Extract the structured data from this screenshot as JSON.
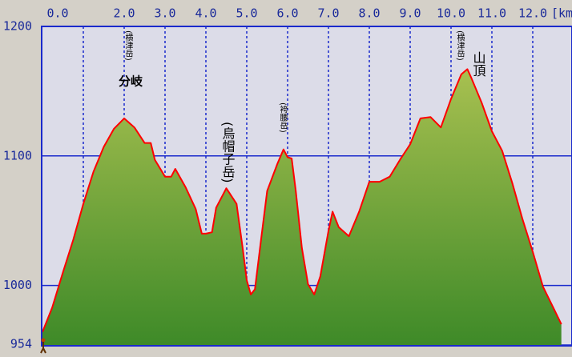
{
  "chart_data": {
    "type": "area-line",
    "x_label": "[km",
    "x": [
      0,
      0.24,
      0.5,
      0.75,
      1.0,
      1.25,
      1.5,
      1.75,
      2.0,
      2.25,
      2.5,
      2.65,
      2.75,
      3.0,
      3.15,
      3.25,
      3.5,
      3.75,
      3.9,
      4.0,
      4.15,
      4.25,
      4.5,
      4.75,
      4.9,
      5.0,
      5.1,
      5.2,
      5.35,
      5.5,
      5.75,
      5.9,
      6.0,
      6.1,
      6.2,
      6.35,
      6.5,
      6.65,
      6.8,
      7.0,
      7.1,
      7.25,
      7.5,
      7.75,
      8.0,
      8.25,
      8.5,
      8.75,
      9.0,
      9.25,
      9.5,
      9.75,
      10.0,
      10.25,
      10.4,
      10.5,
      10.75,
      11.0,
      11.25,
      11.5,
      11.75,
      12.0,
      12.25,
      12.5,
      12.7
    ],
    "series": [
      {
        "color": "#ff0000",
        "fill": "#5f9c30",
        "values": [
          964,
          983,
          1010,
          1035,
          1063,
          1088,
          1107,
          1121,
          1129,
          1122,
          1110,
          1110,
          1097,
          1084,
          1084,
          1090,
          1076,
          1059,
          1040,
          1040,
          1041,
          1060,
          1075,
          1063,
          1029,
          1004,
          993,
          997,
          1035,
          1073,
          1094,
          1105,
          1099,
          1098,
          1073,
          1029,
          1001,
          993,
          1007,
          1042,
          1057,
          1045,
          1038,
          1057,
          1080,
          1080,
          1084,
          1097,
          1109,
          1129,
          1130,
          1122,
          1144,
          1163,
          1167,
          1160,
          1141,
          1119,
          1104,
          1079,
          1051,
          1026,
          999,
          983,
          970
        ]
      }
    ],
    "xlim": [
      0,
      12.73
    ],
    "ylim": [
      954,
      1200
    ],
    "xticks": [
      {
        "value": 0,
        "label": "0.0"
      },
      {
        "value": 1,
        "label": null
      },
      {
        "value": 2,
        "label": "2.0"
      },
      {
        "value": 3,
        "label": "3.0"
      },
      {
        "value": 4,
        "label": "4.0"
      },
      {
        "value": 5,
        "label": "5.0"
      },
      {
        "value": 6,
        "label": "6.0"
      },
      {
        "value": 7,
        "label": "7.0"
      },
      {
        "value": 8,
        "label": "8.0"
      },
      {
        "value": 9,
        "label": "9.0"
      },
      {
        "value": 10,
        "label": "10.0"
      },
      {
        "value": 11,
        "label": "11.0"
      },
      {
        "value": 12,
        "label": "12.0"
      }
    ],
    "yticks": [
      954,
      1000,
      1100,
      1200
    ],
    "grid": true,
    "annotations": [
      "(横津岳)",
      "分岐",
      "(烏帽子岳)",
      "(袴腰岳)",
      "(横津岳)",
      "山頂"
    ]
  }
}
